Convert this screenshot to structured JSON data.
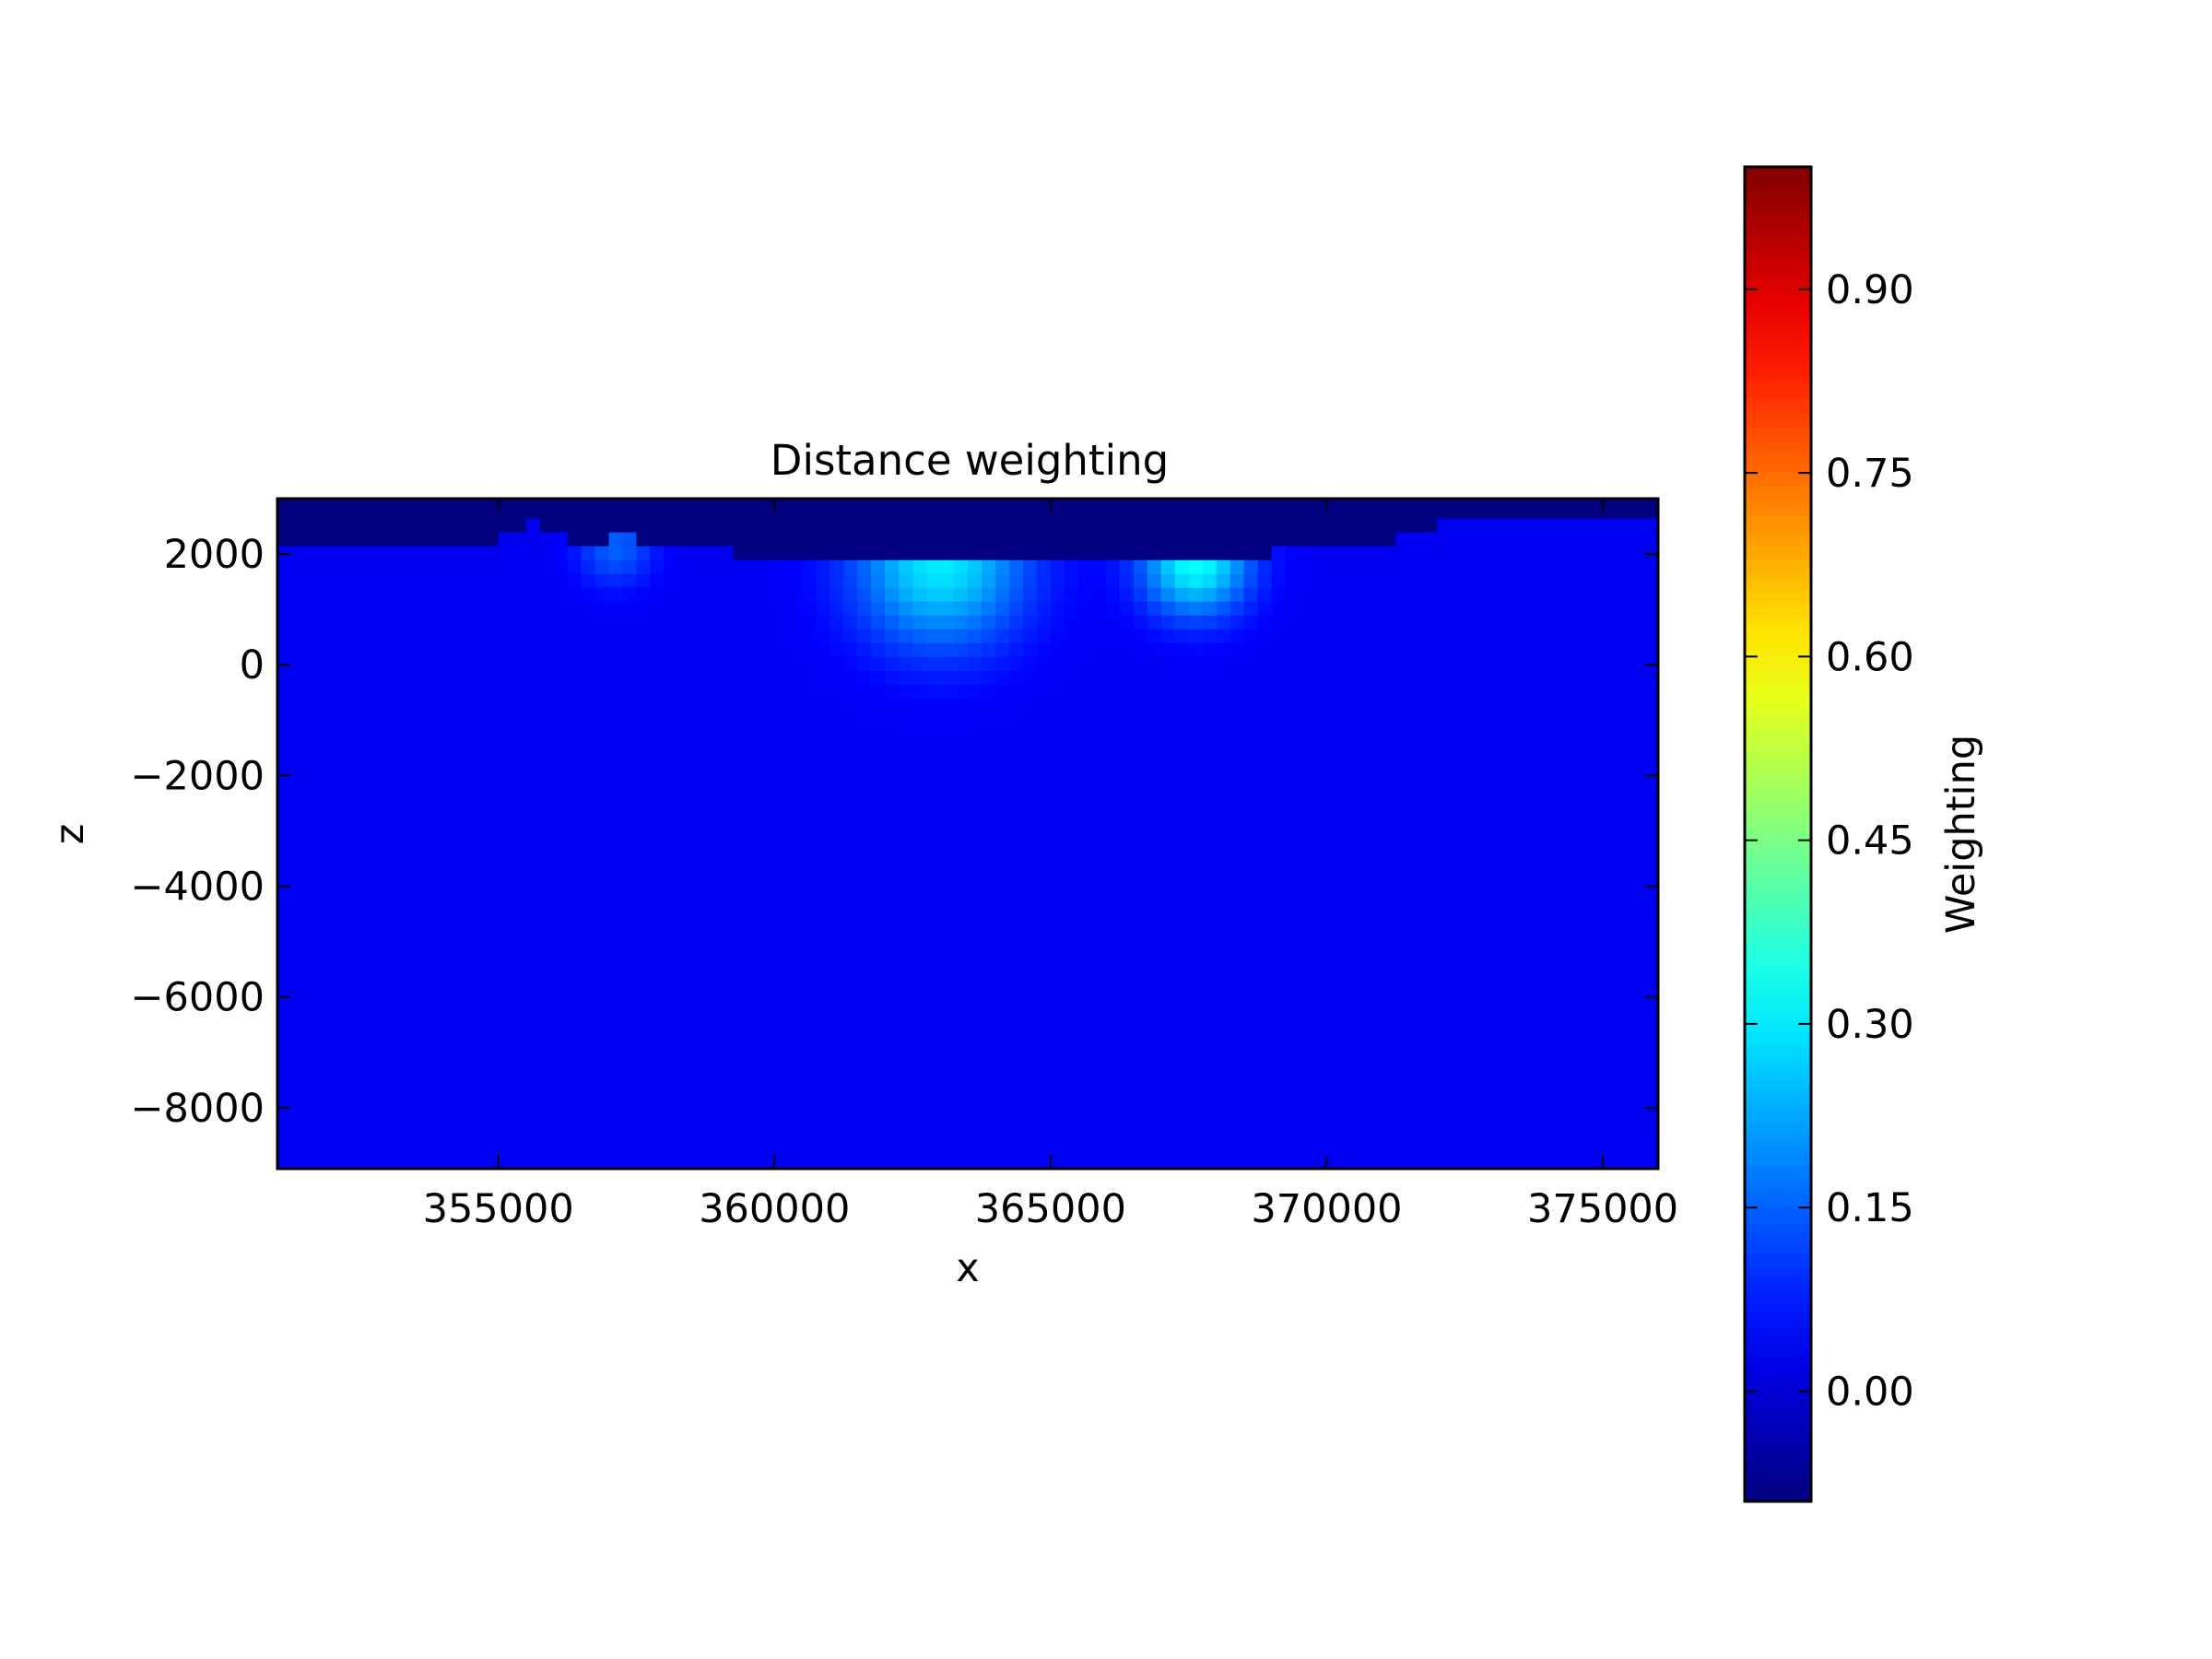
{
  "chart_data": {
    "type": "heatmap",
    "title": "Distance weighting",
    "xlabel": "x",
    "ylabel": "z",
    "xlim": [
      351000,
      376000
    ],
    "ylim": [
      -9100,
      3000
    ],
    "x_ticks": [
      355000,
      360000,
      365000,
      370000,
      375000
    ],
    "x_tick_labels": [
      "355000",
      "360000",
      "365000",
      "370000",
      "375000"
    ],
    "y_ticks": [
      2000,
      0,
      -2000,
      -4000,
      -6000,
      -8000
    ],
    "y_tick_labels": [
      "2000",
      "0",
      "−2000",
      "−4000",
      "−6000",
      "−8000"
    ],
    "colormap": "jet",
    "colorbar": {
      "label": "Weighting",
      "range": [
        -0.09,
        1.0
      ],
      "ticks": [
        0.0,
        0.15,
        0.3,
        0.45,
        0.6,
        0.75,
        0.9
      ],
      "tick_labels": [
        "0.00",
        "0.15",
        "0.30",
        "0.45",
        "0.60",
        "0.75",
        "0.90"
      ]
    },
    "background_value": 0.03,
    "inactive_value": -0.09,
    "cell_size": {
      "x": 250,
      "z": 250
    },
    "surface_top_cells": [
      {
        "x_from": 351000,
        "x_to": 355000,
        "z_top": 2250
      },
      {
        "x_from": 355000,
        "x_to": 355500,
        "z_top": 2500
      },
      {
        "x_from": 355500,
        "x_to": 355750,
        "z_top": 2750
      },
      {
        "x_from": 355750,
        "x_to": 356250,
        "z_top": 2500
      },
      {
        "x_from": 356250,
        "x_to": 356750,
        "z_top": 2250
      },
      {
        "x_from": 356750,
        "x_to": 357000,
        "z_top": 2250
      },
      {
        "x_from": 357000,
        "x_to": 357500,
        "z_top": 2500
      },
      {
        "x_from": 357500,
        "x_to": 359250,
        "z_top": 2250
      },
      {
        "x_from": 359250,
        "x_to": 369000,
        "z_top": 2000
      },
      {
        "x_from": 369000,
        "x_to": 371250,
        "z_top": 2250
      },
      {
        "x_from": 371250,
        "x_to": 372000,
        "z_top": 2500
      },
      {
        "x_from": 372000,
        "x_to": 376000,
        "z_top": 2750
      }
    ],
    "hotspots": [
      {
        "x": 363000,
        "z": 1875,
        "peak": 0.3,
        "radius": 1100
      },
      {
        "x": 367625,
        "z": 1875,
        "peak": 0.33,
        "radius": 700
      },
      {
        "x": 357125,
        "z": 2125,
        "peak": 0.15,
        "radius": 500
      }
    ]
  }
}
